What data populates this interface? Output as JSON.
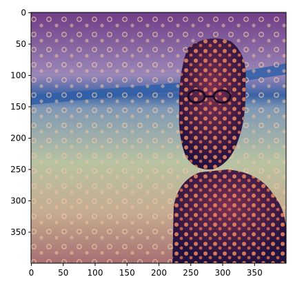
{
  "figure": {
    "image_description_icon": "stylized-portrait-image",
    "x_axis": {
      "ticks": [
        "0",
        "50",
        "100",
        "150",
        "200",
        "250",
        "300",
        "350"
      ],
      "tick_values": [
        0,
        50,
        100,
        150,
        200,
        250,
        300,
        350
      ],
      "range": [
        0,
        400
      ]
    },
    "y_axis": {
      "ticks": [
        "0",
        "50",
        "100",
        "150",
        "200",
        "250",
        "300",
        "350"
      ],
      "tick_values": [
        0,
        50,
        100,
        150,
        200,
        250,
        300,
        350
      ],
      "range": [
        0,
        400
      ],
      "inverted": true
    },
    "colors": {
      "frame": "#000000",
      "sky_top": "#7a4f8c",
      "sky_mid": "#8f7fb0",
      "blue_band": "#2f5fa8",
      "lower_bg": "#b9c4a3",
      "lower_left": "#c8a487",
      "figure_dark": "#2a1650",
      "figure_spots": "#f08a5d",
      "bokeh": "#f0c2a0"
    }
  }
}
